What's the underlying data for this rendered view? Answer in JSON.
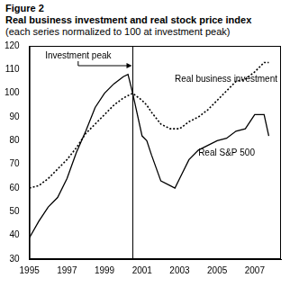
{
  "chart_data": {
    "type": "line",
    "title": "Figure 2",
    "subtitle": [
      "Real business investment and real stock price index",
      "(each series normalized to 100 at investment peak)"
    ],
    "x": [
      1995,
      1995.5,
      1996,
      1996.5,
      1997,
      1997.5,
      1998,
      1998.5,
      1999,
      1999.5,
      2000,
      2000.25,
      2000.5,
      2001,
      2001.25,
      2001.5,
      2002,
      2002.5,
      2002.75,
      2003,
      2003.5,
      2004,
      2004.5,
      2005,
      2005.5,
      2006,
      2006.5,
      2007,
      2007.5,
      2007.75
    ],
    "series": [
      {
        "name": "Real business investment",
        "color": "#000000",
        "line_style": "dotted",
        "values": [
          60,
          61,
          64,
          68,
          72,
          77,
          83,
          87,
          91,
          95,
          98,
          99,
          100,
          97,
          95,
          92,
          87,
          85,
          85,
          85,
          88,
          90,
          93,
          97,
          101,
          105,
          106,
          109,
          113,
          113
        ]
      },
      {
        "name": "Real S&P 500",
        "color": "#000000",
        "line_style": "solid",
        "values": [
          39,
          46,
          52,
          56,
          64,
          75,
          84,
          94,
          100,
          104,
          107,
          108,
          100,
          82,
          80,
          74,
          63,
          61,
          60,
          64,
          72,
          76,
          78,
          80,
          81,
          84,
          85,
          91,
          91,
          82
        ]
      }
    ],
    "annotations": [
      {
        "text": "Investment peak",
        "x": 2000.5
      }
    ],
    "xlim": [
      1995,
      2008.4
    ],
    "xticks": [
      1995,
      1997,
      1999,
      2001,
      2003,
      2005,
      2007
    ],
    "ylim": [
      30,
      120
    ],
    "yticks": [
      30,
      40,
      50,
      60,
      70,
      80,
      90,
      100,
      110,
      120
    ],
    "grid": false,
    "legend": "none"
  }
}
